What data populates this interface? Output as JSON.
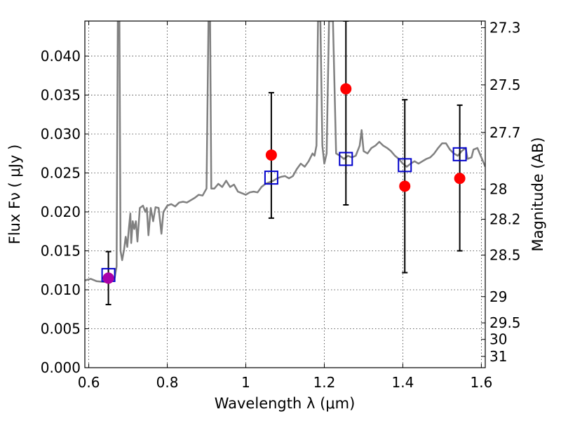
{
  "chart_data": {
    "type": "scatter",
    "xlabel": "Wavelength  λ (μm)",
    "ylabel": "Flux  Fν  ( μJy )",
    "y2label": "Magnitude (AB)",
    "xlim": [
      0.59,
      1.61
    ],
    "ylim": [
      0.0,
      0.0445
    ],
    "x_ticks": [
      0.6,
      0.8,
      1.0,
      1.2,
      1.4,
      1.6
    ],
    "x_tick_labels": [
      "0.6",
      "0.8",
      "1",
      "1.2",
      "1.4",
      "1.6"
    ],
    "y_ticks": [
      0.0,
      0.005,
      0.01,
      0.015,
      0.02,
      0.025,
      0.03,
      0.035,
      0.04
    ],
    "y_tick_labels": [
      "0.000",
      "0.005",
      "0.010",
      "0.015",
      "0.020",
      "0.025",
      "0.030",
      "0.035",
      "0.040"
    ],
    "y2_ticks": [
      27.3,
      27.5,
      27.7,
      28,
      28.2,
      28.5,
      29,
      29.5,
      30,
      31
    ],
    "y2_tick_labels": [
      "27.3",
      "27.5",
      "27.7",
      "28",
      "28.2",
      "28.5",
      "29",
      "29.5",
      "30",
      "31"
    ],
    "grid": true,
    "series": [
      {
        "type": "line",
        "color": "#808080",
        "points": [
          [
            0.59,
            0.0112
          ],
          [
            0.605,
            0.0114
          ],
          [
            0.62,
            0.0111
          ],
          [
            0.64,
            0.011
          ],
          [
            0.66,
            0.0112
          ],
          [
            0.666,
            0.0115
          ],
          [
            0.671,
            0.013
          ],
          [
            0.674,
            0.0445
          ],
          [
            0.678,
            0.0445
          ],
          [
            0.681,
            0.015
          ],
          [
            0.685,
            0.0138
          ],
          [
            0.69,
            0.0152
          ],
          [
            0.694,
            0.0168
          ],
          [
            0.698,
            0.0155
          ],
          [
            0.702,
            0.0178
          ],
          [
            0.706,
            0.0198
          ],
          [
            0.708,
            0.016
          ],
          [
            0.712,
            0.0188
          ],
          [
            0.716,
            0.0178
          ],
          [
            0.72,
            0.0188
          ],
          [
            0.724,
            0.0162
          ],
          [
            0.73,
            0.0205
          ],
          [
            0.738,
            0.0208
          ],
          [
            0.744,
            0.02
          ],
          [
            0.748,
            0.0205
          ],
          [
            0.752,
            0.017
          ],
          [
            0.758,
            0.0205
          ],
          [
            0.764,
            0.0188
          ],
          [
            0.77,
            0.0206
          ],
          [
            0.778,
            0.0205
          ],
          [
            0.785,
            0.0172
          ],
          [
            0.79,
            0.02
          ],
          [
            0.8,
            0.0208
          ],
          [
            0.81,
            0.021
          ],
          [
            0.82,
            0.0207
          ],
          [
            0.83,
            0.0212
          ],
          [
            0.84,
            0.0213
          ],
          [
            0.85,
            0.0212
          ],
          [
            0.86,
            0.0215
          ],
          [
            0.87,
            0.0218
          ],
          [
            0.88,
            0.0222
          ],
          [
            0.89,
            0.0221
          ],
          [
            0.9,
            0.023
          ],
          [
            0.905,
            0.0445
          ],
          [
            0.909,
            0.0445
          ],
          [
            0.912,
            0.023
          ],
          [
            0.92,
            0.023
          ],
          [
            0.93,
            0.0236
          ],
          [
            0.94,
            0.0232
          ],
          [
            0.95,
            0.024
          ],
          [
            0.96,
            0.0232
          ],
          [
            0.97,
            0.0235
          ],
          [
            0.98,
            0.0226
          ],
          [
            0.99,
            0.0224
          ],
          [
            1.0,
            0.0222
          ],
          [
            1.01,
            0.0225
          ],
          [
            1.02,
            0.0226
          ],
          [
            1.03,
            0.0225
          ],
          [
            1.04,
            0.0232
          ],
          [
            1.05,
            0.0236
          ],
          [
            1.06,
            0.0238
          ],
          [
            1.07,
            0.024
          ],
          [
            1.08,
            0.0243
          ],
          [
            1.09,
            0.0245
          ],
          [
            1.1,
            0.0246
          ],
          [
            1.11,
            0.0243
          ],
          [
            1.12,
            0.0246
          ],
          [
            1.13,
            0.0255
          ],
          [
            1.14,
            0.0262
          ],
          [
            1.15,
            0.0258
          ],
          [
            1.16,
            0.0265
          ],
          [
            1.17,
            0.0275
          ],
          [
            1.175,
            0.0272
          ],
          [
            1.18,
            0.0285
          ],
          [
            1.184,
            0.0445
          ],
          [
            1.19,
            0.0445
          ],
          [
            1.195,
            0.0285
          ],
          [
            1.2,
            0.0262
          ],
          [
            1.206,
            0.0275
          ],
          [
            1.212,
            0.0445
          ],
          [
            1.222,
            0.0445
          ],
          [
            1.23,
            0.0275
          ],
          [
            1.24,
            0.0272
          ],
          [
            1.25,
            0.0268
          ],
          [
            1.26,
            0.0272
          ],
          [
            1.27,
            0.027
          ],
          [
            1.28,
            0.0272
          ],
          [
            1.29,
            0.0285
          ],
          [
            1.295,
            0.0305
          ],
          [
            1.3,
            0.0278
          ],
          [
            1.31,
            0.0275
          ],
          [
            1.32,
            0.0282
          ],
          [
            1.33,
            0.0285
          ],
          [
            1.34,
            0.029
          ],
          [
            1.35,
            0.0285
          ],
          [
            1.36,
            0.0282
          ],
          [
            1.37,
            0.0278
          ],
          [
            1.38,
            0.0272
          ],
          [
            1.39,
            0.0268
          ],
          [
            1.4,
            0.0262
          ],
          [
            1.41,
            0.0258
          ],
          [
            1.42,
            0.0262
          ],
          [
            1.43,
            0.0265
          ],
          [
            1.44,
            0.0262
          ],
          [
            1.45,
            0.0265
          ],
          [
            1.46,
            0.0268
          ],
          [
            1.47,
            0.027
          ],
          [
            1.48,
            0.0275
          ],
          [
            1.49,
            0.0282
          ],
          [
            1.5,
            0.0288
          ],
          [
            1.51,
            0.0288
          ],
          [
            1.52,
            0.028
          ],
          [
            1.53,
            0.0275
          ],
          [
            1.54,
            0.0272
          ],
          [
            1.55,
            0.0278
          ],
          [
            1.56,
            0.0282
          ],
          [
            1.565,
            0.0268
          ],
          [
            1.575,
            0.027
          ],
          [
            1.58,
            0.028
          ],
          [
            1.59,
            0.0282
          ],
          [
            1.6,
            0.027
          ],
          [
            1.61,
            0.0258
          ]
        ]
      },
      {
        "type": "errorbar",
        "color": "#ff0000",
        "marker": "circle",
        "points": [
          {
            "x": 0.65,
            "y": 0.0115,
            "ylo": 0.0081,
            "yhi": 0.0149
          },
          {
            "x": 1.065,
            "y": 0.0273,
            "ylo": 0.0192,
            "yhi": 0.0353
          },
          {
            "x": 1.255,
            "y": 0.0358,
            "ylo": 0.0209,
            "yhi": 0.0445
          },
          {
            "x": 1.405,
            "y": 0.0233,
            "ylo": 0.0122,
            "yhi": 0.0344
          },
          {
            "x": 1.545,
            "y": 0.0243,
            "ylo": 0.015,
            "yhi": 0.0337
          }
        ]
      },
      {
        "type": "scatter",
        "color": "#0000cc",
        "marker": "square",
        "points": [
          {
            "x": 0.65,
            "y": 0.0119
          },
          {
            "x": 1.065,
            "y": 0.0244
          },
          {
            "x": 1.255,
            "y": 0.0268
          },
          {
            "x": 1.405,
            "y": 0.026
          },
          {
            "x": 1.545,
            "y": 0.0274
          }
        ]
      }
    ],
    "highlight_point": {
      "x": 0.65,
      "y": 0.0115,
      "color": "#aa00aa"
    }
  }
}
